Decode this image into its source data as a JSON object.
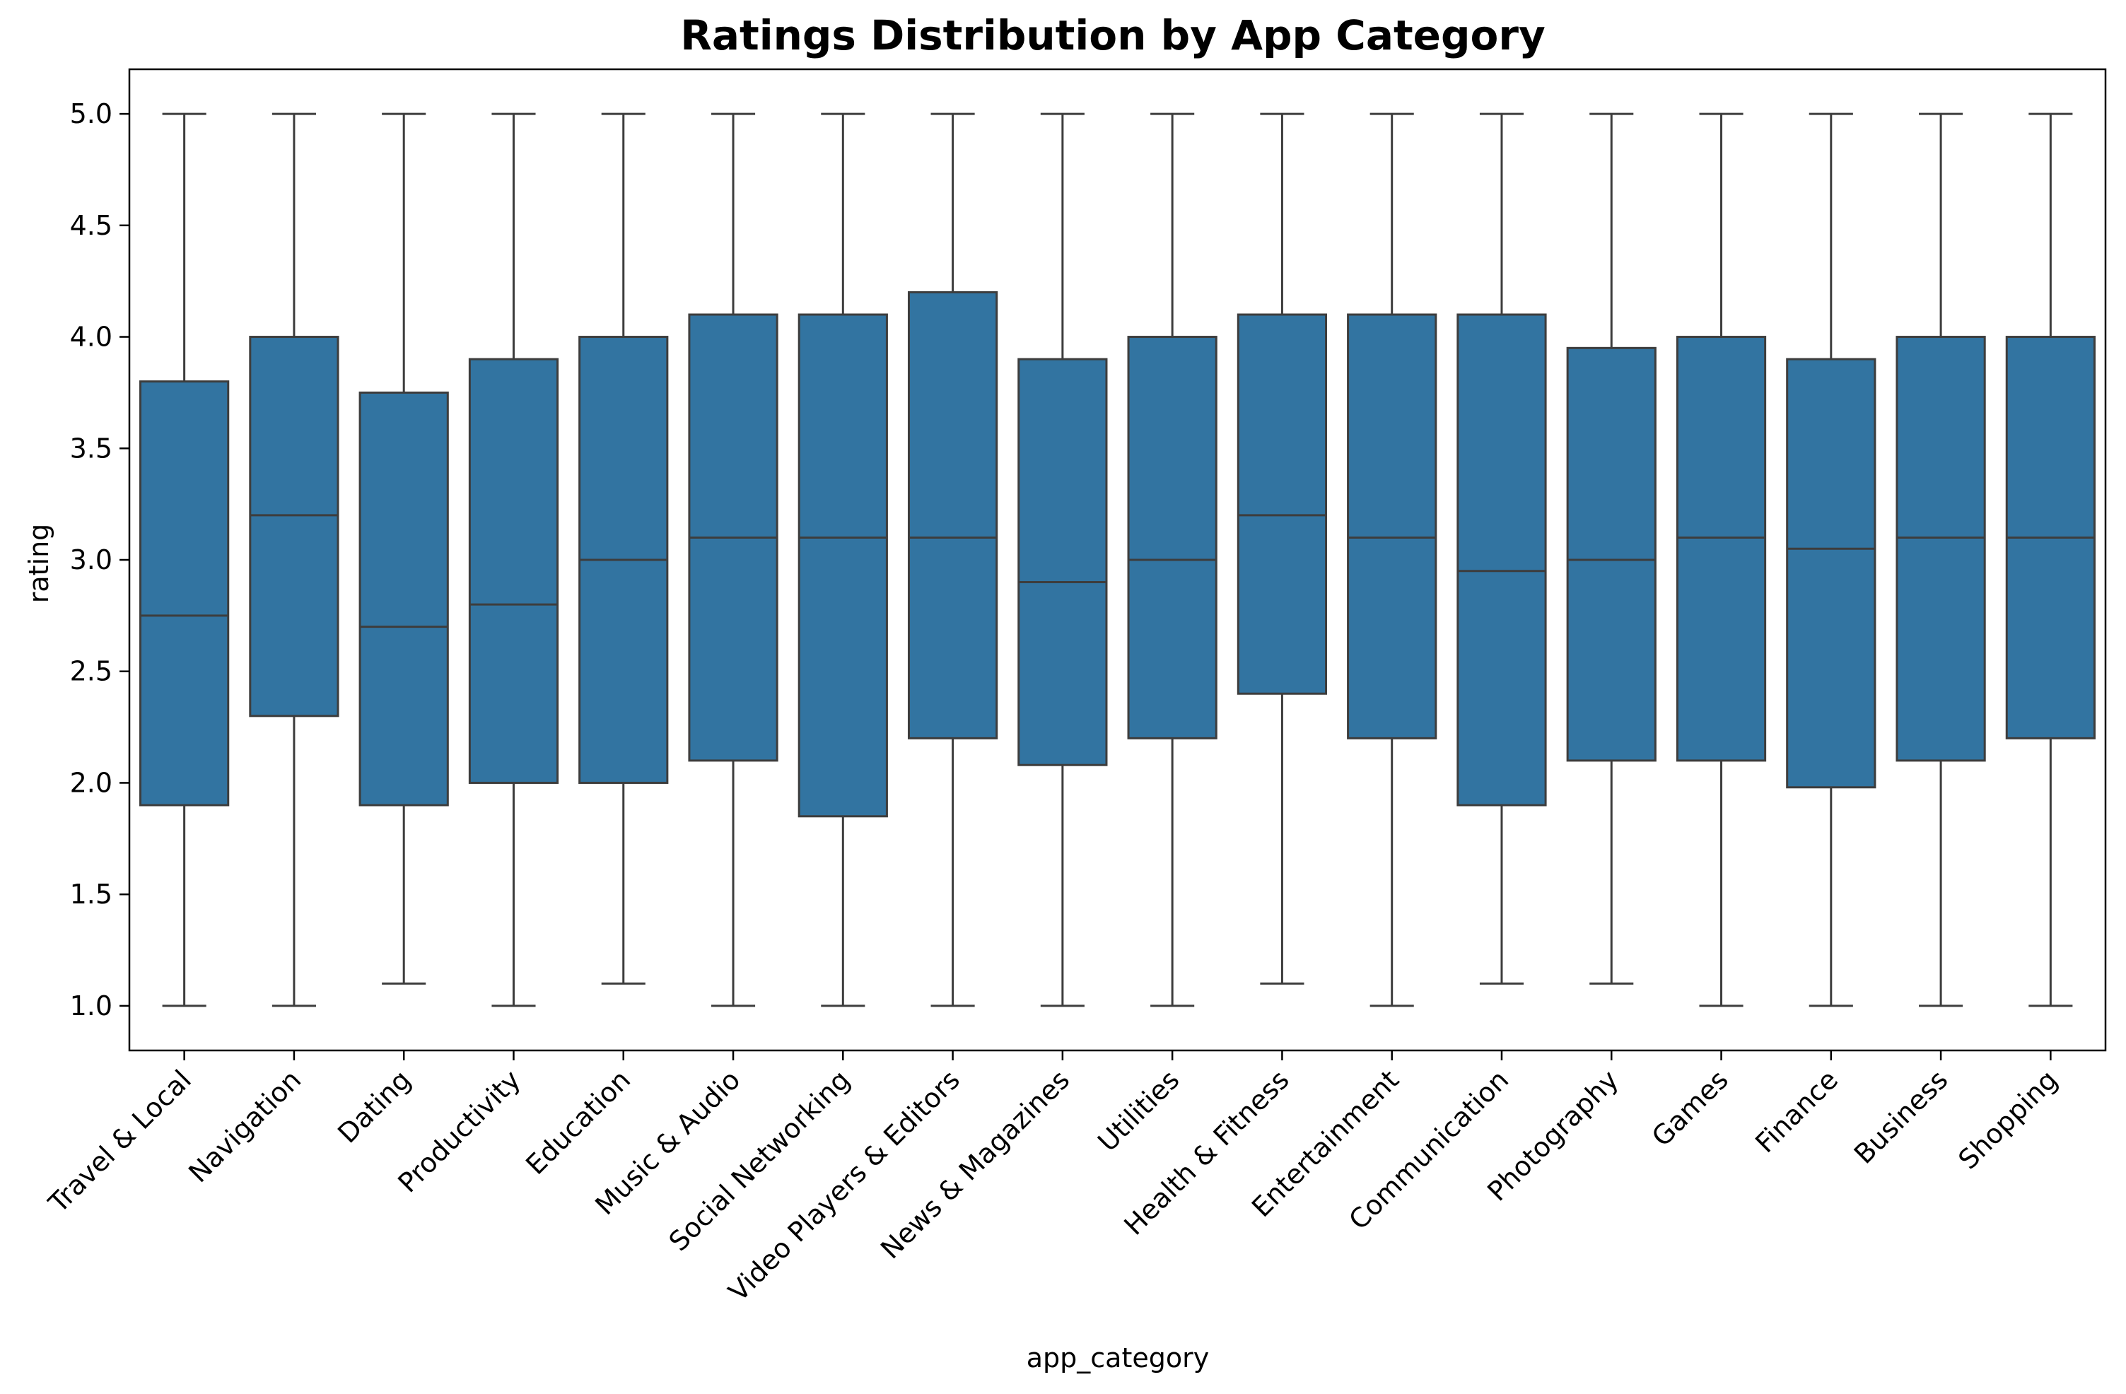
{
  "chart_data": {
    "type": "box",
    "title": "Ratings Distribution by App Category",
    "xlabel": "app_category",
    "ylabel": "rating",
    "ylim": [
      0.8,
      5.2
    ],
    "yticks": [
      "1.0",
      "1.5",
      "2.0",
      "2.5",
      "3.0",
      "3.5",
      "4.0",
      "4.5",
      "5.0"
    ],
    "grid": false,
    "colors": {
      "box_fill": "#3274a1",
      "line": "#3d3d3d"
    },
    "categories": [
      "Travel & Local",
      "Navigation",
      "Dating",
      "Productivity",
      "Education",
      "Music & Audio",
      "Social Networking",
      "Video Players & Editors",
      "News & Magazines",
      "Utilities",
      "Health & Fitness",
      "Entertainment",
      "Communication",
      "Photography",
      "Games",
      "Finance",
      "Business",
      "Shopping"
    ],
    "boxes": [
      {
        "min": 1.0,
        "q1": 1.9,
        "median": 2.75,
        "q3": 3.8,
        "max": 5.0
      },
      {
        "min": 1.0,
        "q1": 2.3,
        "median": 3.2,
        "q3": 4.0,
        "max": 5.0
      },
      {
        "min": 1.1,
        "q1": 1.9,
        "median": 2.7,
        "q3": 3.75,
        "max": 5.0
      },
      {
        "min": 1.0,
        "q1": 2.0,
        "median": 2.8,
        "q3": 3.9,
        "max": 5.0
      },
      {
        "min": 1.1,
        "q1": 2.0,
        "median": 3.0,
        "q3": 4.0,
        "max": 5.0
      },
      {
        "min": 1.0,
        "q1": 2.1,
        "median": 3.1,
        "q3": 4.1,
        "max": 5.0
      },
      {
        "min": 1.0,
        "q1": 1.85,
        "median": 3.1,
        "q3": 4.1,
        "max": 5.0
      },
      {
        "min": 1.0,
        "q1": 2.2,
        "median": 3.1,
        "q3": 4.2,
        "max": 5.0
      },
      {
        "min": 1.0,
        "q1": 2.08,
        "median": 2.9,
        "q3": 3.9,
        "max": 5.0
      },
      {
        "min": 1.0,
        "q1": 2.2,
        "median": 3.0,
        "q3": 4.0,
        "max": 5.0
      },
      {
        "min": 1.1,
        "q1": 2.4,
        "median": 3.2,
        "q3": 4.1,
        "max": 5.0
      },
      {
        "min": 1.0,
        "q1": 2.2,
        "median": 3.1,
        "q3": 4.1,
        "max": 5.0
      },
      {
        "min": 1.1,
        "q1": 1.9,
        "median": 2.95,
        "q3": 4.1,
        "max": 5.0
      },
      {
        "min": 1.1,
        "q1": 2.1,
        "median": 3.0,
        "q3": 3.95,
        "max": 5.0
      },
      {
        "min": 1.0,
        "q1": 2.1,
        "median": 3.1,
        "q3": 4.0,
        "max": 5.0
      },
      {
        "min": 1.0,
        "q1": 1.98,
        "median": 3.05,
        "q3": 3.9,
        "max": 5.0
      },
      {
        "min": 1.0,
        "q1": 2.1,
        "median": 3.1,
        "q3": 4.0,
        "max": 5.0
      },
      {
        "min": 1.0,
        "q1": 2.2,
        "median": 3.1,
        "q3": 4.0,
        "max": 5.0
      }
    ]
  }
}
